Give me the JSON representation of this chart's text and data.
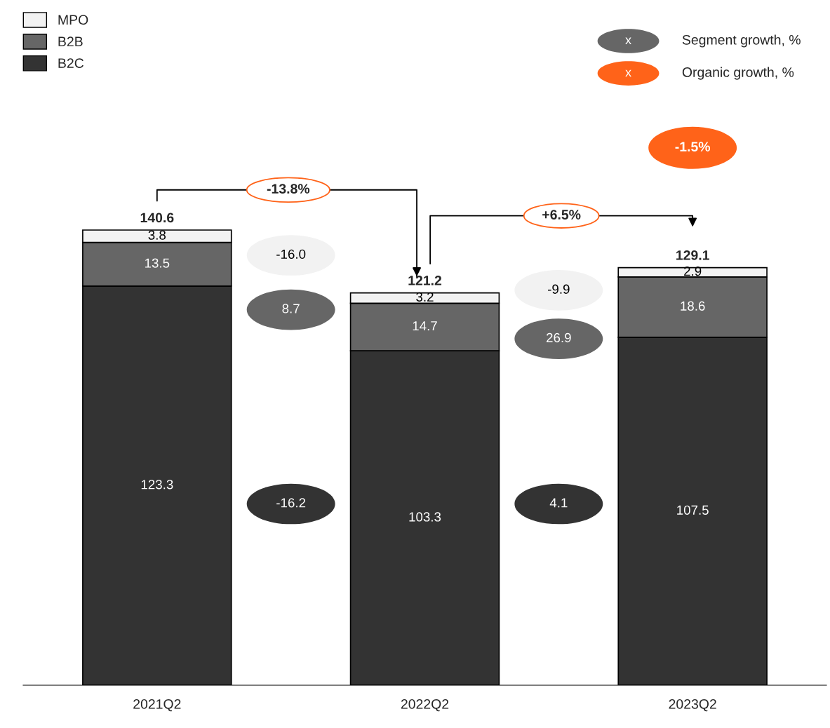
{
  "chart_data": {
    "type": "bar",
    "stacked": true,
    "categories": [
      "2021Q2",
      "2022Q2",
      "2023Q2"
    ],
    "series": [
      {
        "name": "B2C",
        "color": "#333333",
        "values": [
          123.3,
          103.3,
          107.5
        ]
      },
      {
        "name": "B2B",
        "color": "#666666",
        "values": [
          13.5,
          14.7,
          18.6
        ]
      },
      {
        "name": "MPO",
        "color": "#f2f2f2",
        "values": [
          3.8,
          3.2,
          2.9
        ]
      }
    ],
    "data_labels": true,
    "totals": [
      "140.6",
      "121.2",
      "129.1"
    ],
    "legend": "top left",
    "grid": false,
    "annotations": [
      "-16.0",
      "8.7",
      "-16.2",
      "-9.9",
      "26.9",
      "4.1",
      "-13.8%",
      "+6.5%",
      "-1.5%",
      "x",
      "Segment growth, %",
      "x",
      "Organic growth, %"
    ]
  }
}
